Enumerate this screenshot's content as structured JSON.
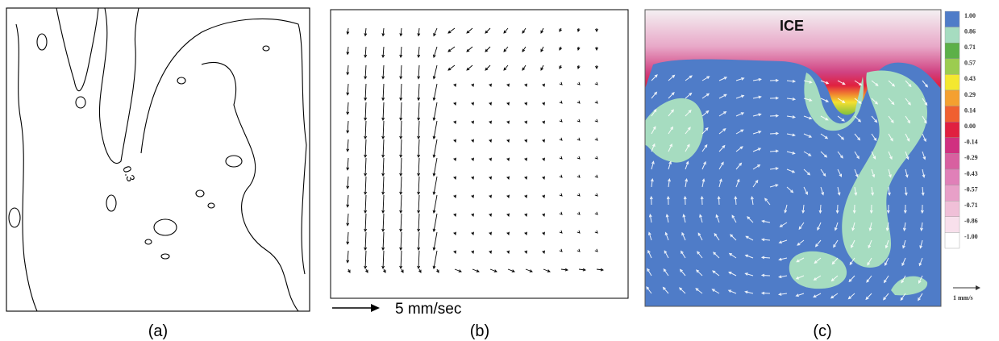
{
  "panels": [
    {
      "label": "(a)",
      "contour_label": "0.3"
    },
    {
      "label": "(b)",
      "scale_label": "5 mm/sec"
    },
    {
      "label": "(c)",
      "region_label": "ICE",
      "colorbar_labels": [
        "1.00",
        "0.86",
        "0.71",
        "0.57",
        "0.43",
        "0.29",
        "0.14",
        "0.00",
        "-0.14",
        "-0.29",
        "-0.43",
        "-0.57",
        "-0.71",
        "-0.86",
        "-1.00"
      ],
      "scale_label": "1 mm/s"
    }
  ]
}
